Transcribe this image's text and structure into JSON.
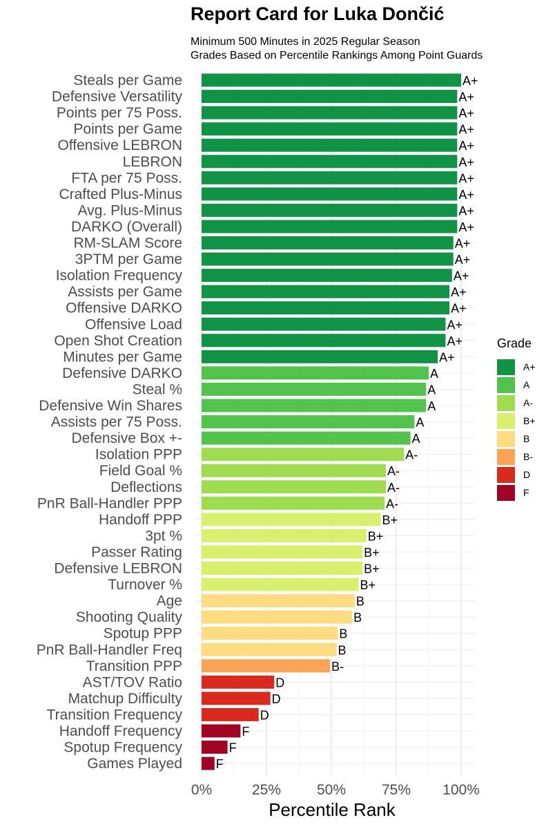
{
  "chart_data": {
    "type": "bar",
    "orientation": "horizontal",
    "title": "Report Card for Luka Dončić",
    "subtitle": [
      "Minimum 500 Minutes in 2025 Regular Season",
      "Grades Based on Percentile Rankings Among Point Guards"
    ],
    "xlabel": "Percentile Rank",
    "ylabel": "",
    "xlim": [
      0,
      1
    ],
    "x_ticks": [
      {
        "value": 0,
        "label": "0%"
      },
      {
        "value": 0.25,
        "label": "25%"
      },
      {
        "value": 0.5,
        "label": "50%"
      },
      {
        "value": 0.75,
        "label": "75%"
      },
      {
        "value": 1.0,
        "label": "100%"
      }
    ],
    "grid": true,
    "legend": {
      "title": "Grade",
      "position": "right",
      "items": [
        {
          "label": "A+",
          "color": "#109345"
        },
        {
          "label": "A",
          "color": "#52C34D"
        },
        {
          "label": "A-",
          "color": "#A0DC50"
        },
        {
          "label": "B+",
          "color": "#D9F06F"
        },
        {
          "label": "B",
          "color": "#FDDC82"
        },
        {
          "label": "B-",
          "color": "#FCA354"
        },
        {
          "label": "D",
          "color": "#DA2A1E"
        },
        {
          "label": "F",
          "color": "#A20523"
        }
      ]
    },
    "bars": [
      {
        "category": "Steals per Game",
        "value": 1.0,
        "grade": "A+"
      },
      {
        "category": "Defensive Versatility",
        "value": 0.985,
        "grade": "A+"
      },
      {
        "category": "Points per 75 Poss.",
        "value": 0.985,
        "grade": "A+"
      },
      {
        "category": "Points per Game",
        "value": 0.985,
        "grade": "A+"
      },
      {
        "category": "Offensive LEBRON",
        "value": 0.985,
        "grade": "A+"
      },
      {
        "category": "LEBRON",
        "value": 0.985,
        "grade": "A+"
      },
      {
        "category": "FTA per 75 Poss.",
        "value": 0.985,
        "grade": "A+"
      },
      {
        "category": "Crafted Plus-Minus",
        "value": 0.985,
        "grade": "A+"
      },
      {
        "category": "Avg. Plus-Minus",
        "value": 0.985,
        "grade": "A+"
      },
      {
        "category": "DARKO (Overall)",
        "value": 0.985,
        "grade": "A+"
      },
      {
        "category": "RM-SLAM Score",
        "value": 0.97,
        "grade": "A+"
      },
      {
        "category": "3PTM per Game",
        "value": 0.97,
        "grade": "A+"
      },
      {
        "category": "Isolation Frequency",
        "value": 0.965,
        "grade": "A+"
      },
      {
        "category": "Assists per Game",
        "value": 0.955,
        "grade": "A+"
      },
      {
        "category": "Offensive DARKO",
        "value": 0.955,
        "grade": "A+"
      },
      {
        "category": "Offensive Load",
        "value": 0.94,
        "grade": "A+"
      },
      {
        "category": "Open Shot Creation",
        "value": 0.94,
        "grade": "A+"
      },
      {
        "category": "Minutes per Game",
        "value": 0.91,
        "grade": "A+"
      },
      {
        "category": "Defensive DARKO",
        "value": 0.875,
        "grade": "A"
      },
      {
        "category": "Steal %",
        "value": 0.865,
        "grade": "A"
      },
      {
        "category": "Defensive Win Shares",
        "value": 0.865,
        "grade": "A"
      },
      {
        "category": "Assists per 75 Poss.",
        "value": 0.82,
        "grade": "A"
      },
      {
        "category": "Defensive Box +-",
        "value": 0.805,
        "grade": "A"
      },
      {
        "category": "Isolation PPP",
        "value": 0.78,
        "grade": "A-"
      },
      {
        "category": "Field Goal %",
        "value": 0.71,
        "grade": "A-"
      },
      {
        "category": "Deflections",
        "value": 0.71,
        "grade": "A-"
      },
      {
        "category": "PnR Ball-Handler PPP",
        "value": 0.705,
        "grade": "A-"
      },
      {
        "category": "Handoff PPP",
        "value": 0.69,
        "grade": "B+"
      },
      {
        "category": "3pt %",
        "value": 0.635,
        "grade": "B+"
      },
      {
        "category": "Passer Rating",
        "value": 0.62,
        "grade": "B+"
      },
      {
        "category": "Defensive LEBRON",
        "value": 0.62,
        "grade": "B+"
      },
      {
        "category": "Turnover %",
        "value": 0.605,
        "grade": "B+"
      },
      {
        "category": "Age",
        "value": 0.59,
        "grade": "B"
      },
      {
        "category": "Shooting Quality",
        "value": 0.58,
        "grade": "B"
      },
      {
        "category": "Spotup PPP",
        "value": 0.525,
        "grade": "B"
      },
      {
        "category": "PnR Ball-Handler Freq",
        "value": 0.52,
        "grade": "B"
      },
      {
        "category": "Transition PPP",
        "value": 0.495,
        "grade": "B-"
      },
      {
        "category": "AST/TOV Ratio",
        "value": 0.28,
        "grade": "D"
      },
      {
        "category": "Matchup Difficulty",
        "value": 0.265,
        "grade": "D"
      },
      {
        "category": "Transition Frequency",
        "value": 0.22,
        "grade": "D"
      },
      {
        "category": "Handoff Frequency",
        "value": 0.15,
        "grade": "F"
      },
      {
        "category": "Spotup Frequency",
        "value": 0.1,
        "grade": "F"
      },
      {
        "category": "Games Played",
        "value": 0.05,
        "grade": "F"
      }
    ]
  }
}
